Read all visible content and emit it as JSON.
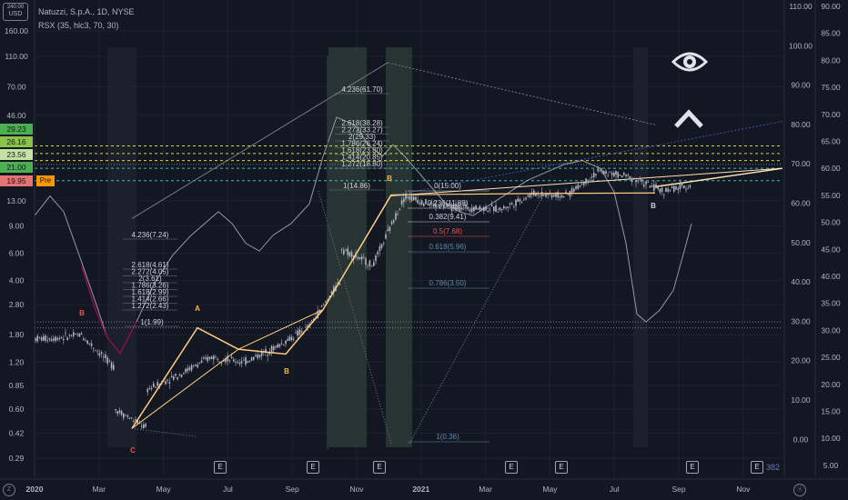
{
  "header": {
    "symbol_line": "Natuzzi, S.p.A., 1D, NYSE",
    "indicator_line": "RSX (35, hlc3, 70, 30)"
  },
  "axis_currency": "USD",
  "axis_currency_top": "240.00",
  "price_boxes": [
    {
      "label": "29.23",
      "color": "#4caf50"
    },
    {
      "label": "26.16",
      "color": "#8bc34a"
    },
    {
      "label": "23.56",
      "color": "#c5e1a5"
    },
    {
      "label": "21.00",
      "color": "#4caf50"
    },
    {
      "label": "19.95",
      "color": "#e57373"
    }
  ],
  "pre_label": "Pre",
  "earnings_badge": "E",
  "bars_count": "382",
  "corner_left": "Z",
  "corner_right": "ⓐ",
  "icons": {
    "eye": "eye-icon",
    "caret": "chevron-up-icon"
  },
  "chart_data": {
    "type": "candlestick",
    "symbol": "Natuzzi, S.p.A.",
    "interval": "1D",
    "exchange": "NYSE",
    "y_scale": "log",
    "left_axis_ticks": [
      "160.00",
      "110.00",
      "70.00",
      "46.00",
      "13.00",
      "9.00",
      "6.00",
      "4.00",
      "2.80",
      "1.80",
      "1.20",
      "0.85",
      "0.60",
      "0.42",
      "0.29"
    ],
    "right_axis_outer_ticks": [
      "90.00",
      "85.00",
      "80.00",
      "75.00",
      "70.00",
      "65.00",
      "60.00",
      "55.00",
      "50.00",
      "45.00",
      "40.00",
      "35.00",
      "30.00",
      "25.00",
      "20.00",
      "15.00",
      "10.00",
      "5.00"
    ],
    "right_axis_inner_ticks": [
      "110.00",
      "100.00",
      "90.00",
      "80.00",
      "70.00",
      "60.00",
      "50.00",
      "40.00",
      "30.00",
      "20.00",
      "10.00",
      "0.00"
    ],
    "x_ticks": [
      "2020",
      "Mar",
      "May",
      "Jul",
      "Sep",
      "Nov",
      "2021",
      "Mar",
      "May",
      "Jul",
      "Sep",
      "Nov"
    ],
    "price_path": [
      {
        "x": "Jan 2020",
        "y": 1.7
      },
      {
        "x": "Feb 2020",
        "y": 1.8
      },
      {
        "x": "Feb 2020",
        "y": 1.75
      },
      {
        "x": "Mar 2020",
        "y": 1.1
      },
      {
        "x": "Mar 2020",
        "y": 0.6
      },
      {
        "x": "Apr 2020",
        "y": 0.45
      },
      {
        "x": "Apr 2020",
        "y": 0.8
      },
      {
        "x": "May 2020",
        "y": 1.0
      },
      {
        "x": "Jun 2020",
        "y": 1.3
      },
      {
        "x": "Jul 2020",
        "y": 1.2
      },
      {
        "x": "Aug 2020",
        "y": 1.5
      },
      {
        "x": "Sep 2020",
        "y": 2.0
      },
      {
        "x": "Oct 2020",
        "y": 4.0
      },
      {
        "x": "Oct 2020",
        "y": 6.5
      },
      {
        "x": "Nov 2020",
        "y": 5.0
      },
      {
        "x": "Dec 2020",
        "y": 14.0
      },
      {
        "x": "Jan 2021",
        "y": 12.0
      },
      {
        "x": "Mar 2021",
        "y": 11.5
      },
      {
        "x": "Apr 2021",
        "y": 14.5
      },
      {
        "x": "May 2021",
        "y": 14.0
      },
      {
        "x": "Jun 2021",
        "y": 20.0
      },
      {
        "x": "Jul 2021",
        "y": 18.5
      },
      {
        "x": "Aug 2021",
        "y": 15.0
      },
      {
        "x": "Sep 2021",
        "y": 16.5
      },
      {
        "x": "Sep 2021",
        "y": 21.0
      }
    ],
    "wave_labels": [
      {
        "label": "B",
        "color": "#ef5350"
      },
      {
        "label": "C",
        "color": "#ef5350"
      },
      {
        "label": "A",
        "color": "#ffb74d"
      },
      {
        "label": "B",
        "color": "#ffb74d"
      },
      {
        "label": "B",
        "color": "#ffb74d"
      },
      {
        "label": "B",
        "color": "#d1d4dc"
      }
    ],
    "fib_levels_1": [
      "4.236(7.24)",
      "2.618(4.61)",
      "2.272(4.05)",
      "2(3.61)",
      "1.786(3.26)",
      "1.618(2.99)",
      "1.414(2.66)",
      "1.272(2.43)",
      "1(1.99)"
    ],
    "fib_levels_2": [
      "4.236(61.70)",
      "2.618(38.28)",
      "2.272(33.27)",
      "2(29.33)",
      "1.786(26.24)",
      "1.618(23.80)",
      "1.414(20.85)",
      "1.272(18.80)",
      "1(14.86)"
    ],
    "fib_retracement": [
      "0(15.00)",
      "0.236(11.88)",
      "0.382(9.41)",
      "0.5(7.68)",
      "0.618(5.96)",
      "0.786(3.50)",
      "1(0.36)"
    ],
    "rsx_levels": {
      "upper": 70,
      "lower": 30
    },
    "colors": {
      "background": "#131722",
      "candles": "#b2b5be",
      "wave_lines": "#ffcc80",
      "fib_lines": "#787b86",
      "rsx_line": "#9598a1",
      "green_levels": "#cddc39",
      "blue_levels": "#4db6ac"
    }
  }
}
